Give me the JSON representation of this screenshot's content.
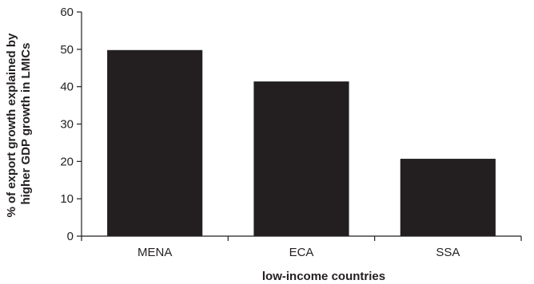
{
  "chart_data": {
    "type": "bar",
    "categories": [
      "MENA",
      "ECA",
      "SSA"
    ],
    "values": [
      49.8,
      41.4,
      20.7
    ],
    "xlabel": "low-income countries",
    "ylabel": [
      "% of export growth explained by",
      "higher GDP growth in LMICs"
    ],
    "ylim": [
      0,
      60
    ],
    "yticks": [
      0,
      10,
      20,
      30,
      40,
      50,
      60
    ],
    "grid": false,
    "bar_color": "#231f20",
    "axis_color": "#231f20"
  }
}
